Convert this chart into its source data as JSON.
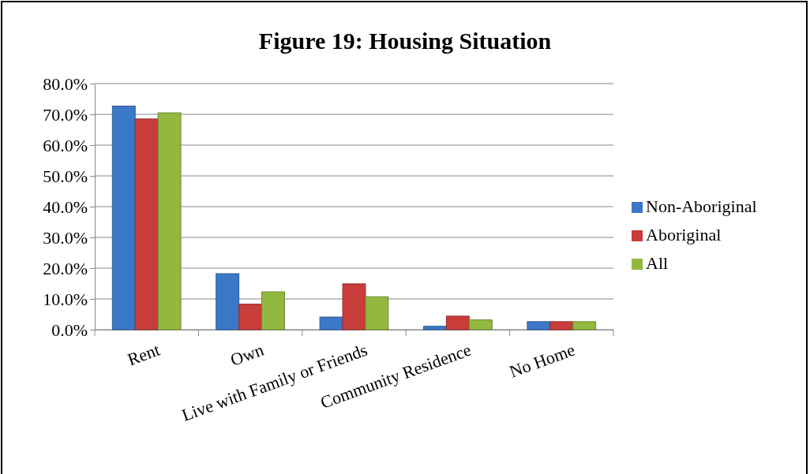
{
  "chart_data": {
    "type": "bar",
    "title": "Figure 19: Housing Situation",
    "categories": [
      "Rent",
      "Own",
      "Live with Family or Friends",
      "Community Residence",
      "No Home"
    ],
    "series": [
      {
        "name": "Non-Aboriginal",
        "color": "#3c78c8",
        "values": [
          72.7,
          18.2,
          4.1,
          1.1,
          2.6
        ]
      },
      {
        "name": "Aboriginal",
        "color": "#c83c3a",
        "values": [
          68.5,
          8.3,
          14.9,
          4.4,
          2.6
        ]
      },
      {
        "name": "All",
        "color": "#92b840",
        "values": [
          70.5,
          12.3,
          10.7,
          3.2,
          2.6
        ]
      }
    ],
    "ylim": [
      0,
      80
    ],
    "yticks": [
      {
        "value": 0,
        "label": "0.0%"
      },
      {
        "value": 10,
        "label": "10.0%"
      },
      {
        "value": 20,
        "label": "20.0%"
      },
      {
        "value": 30,
        "label": "30.0%"
      },
      {
        "value": 40,
        "label": "40.0%"
      },
      {
        "value": 50,
        "label": "50.0%"
      },
      {
        "value": 60,
        "label": "60.0%"
      },
      {
        "value": 70,
        "label": "70.0%"
      },
      {
        "value": 80,
        "label": "80.0%"
      }
    ],
    "grid": "y",
    "legend": "right"
  }
}
